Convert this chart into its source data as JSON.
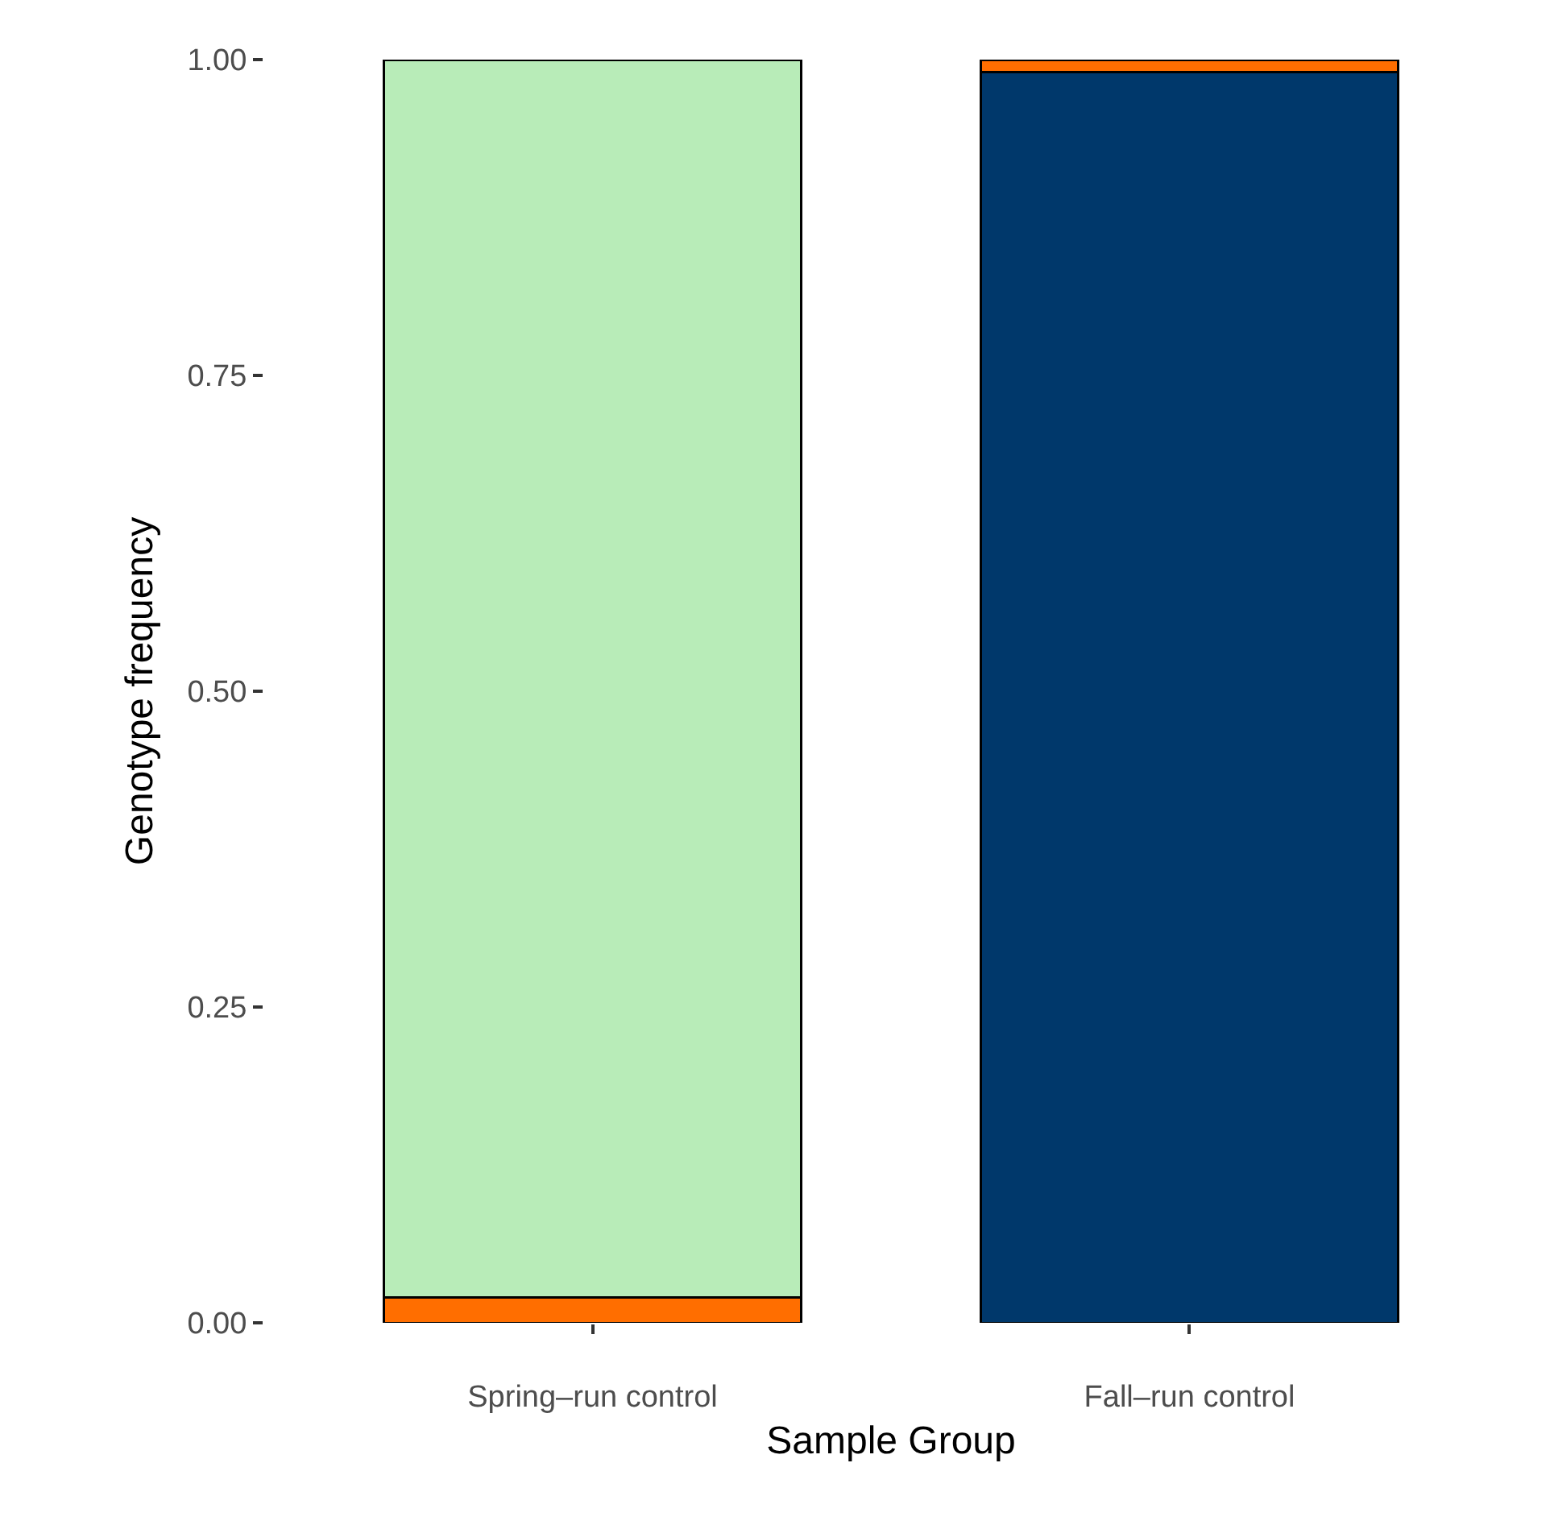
{
  "chart_data": {
    "type": "bar",
    "stacked": true,
    "xlabel": "Sample Group",
    "ylabel": "Genotype frequency",
    "categories": [
      "Spring–run control",
      "Fall–run control"
    ],
    "series": [
      {
        "color": "#00386b",
        "values": [
          null,
          0.99
        ]
      },
      {
        "color": "#ff6e00",
        "values": [
          0.02,
          0.01
        ]
      },
      {
        "color": "#b8ecb8",
        "values": [
          0.98,
          null
        ]
      }
    ],
    "ylim": [
      0,
      1
    ],
    "yticks": [
      {
        "value": 0,
        "label": "0.00"
      },
      {
        "value": 0.25,
        "label": "0.25"
      },
      {
        "value": 0.5,
        "label": "0.50"
      },
      {
        "value": 0.75,
        "label": "0.75"
      },
      {
        "value": 1,
        "label": "1.00"
      }
    ],
    "grid": false
  }
}
